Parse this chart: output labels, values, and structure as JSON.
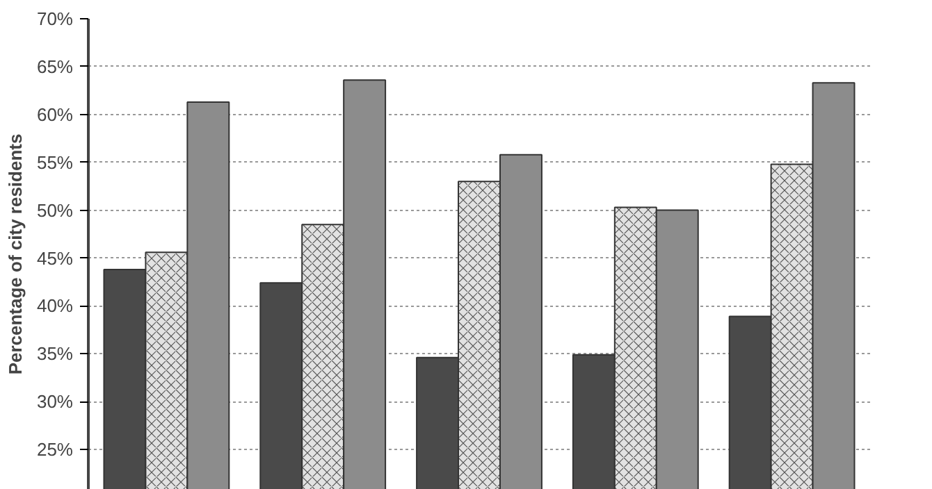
{
  "chart_data": {
    "type": "bar",
    "ylabel": "Percentage of city residents",
    "categories": [
      null,
      null,
      null,
      null,
      null
    ],
    "series": [
      {
        "color": "#4a4a4a",
        "values": [
          43.8,
          42.4,
          34.6,
          34.9,
          38.9
        ]
      },
      {
        "color": "#e2e2e2",
        "values": [
          45.6,
          48.5,
          53.0,
          50.3,
          54.8
        ]
      },
      {
        "color": "#8c8c8c",
        "values": [
          61.3,
          63.6,
          55.8,
          50.0,
          63.3
        ]
      }
    ],
    "ylim": [
      20.8,
      70
    ],
    "yticks": [
      {
        "value": 25,
        "label": "25%"
      },
      {
        "value": 30,
        "label": "30%"
      },
      {
        "value": 35,
        "label": "35%"
      },
      {
        "value": 40,
        "label": "40%"
      },
      {
        "value": 45,
        "label": "45%"
      },
      {
        "value": 50,
        "label": "50%"
      },
      {
        "value": 55,
        "label": "55%"
      },
      {
        "value": 60,
        "label": "60%"
      },
      {
        "value": 65,
        "label": "65%"
      },
      {
        "value": 70,
        "label": "70%"
      }
    ],
    "grid": "y",
    "tick_labels": "y"
  }
}
